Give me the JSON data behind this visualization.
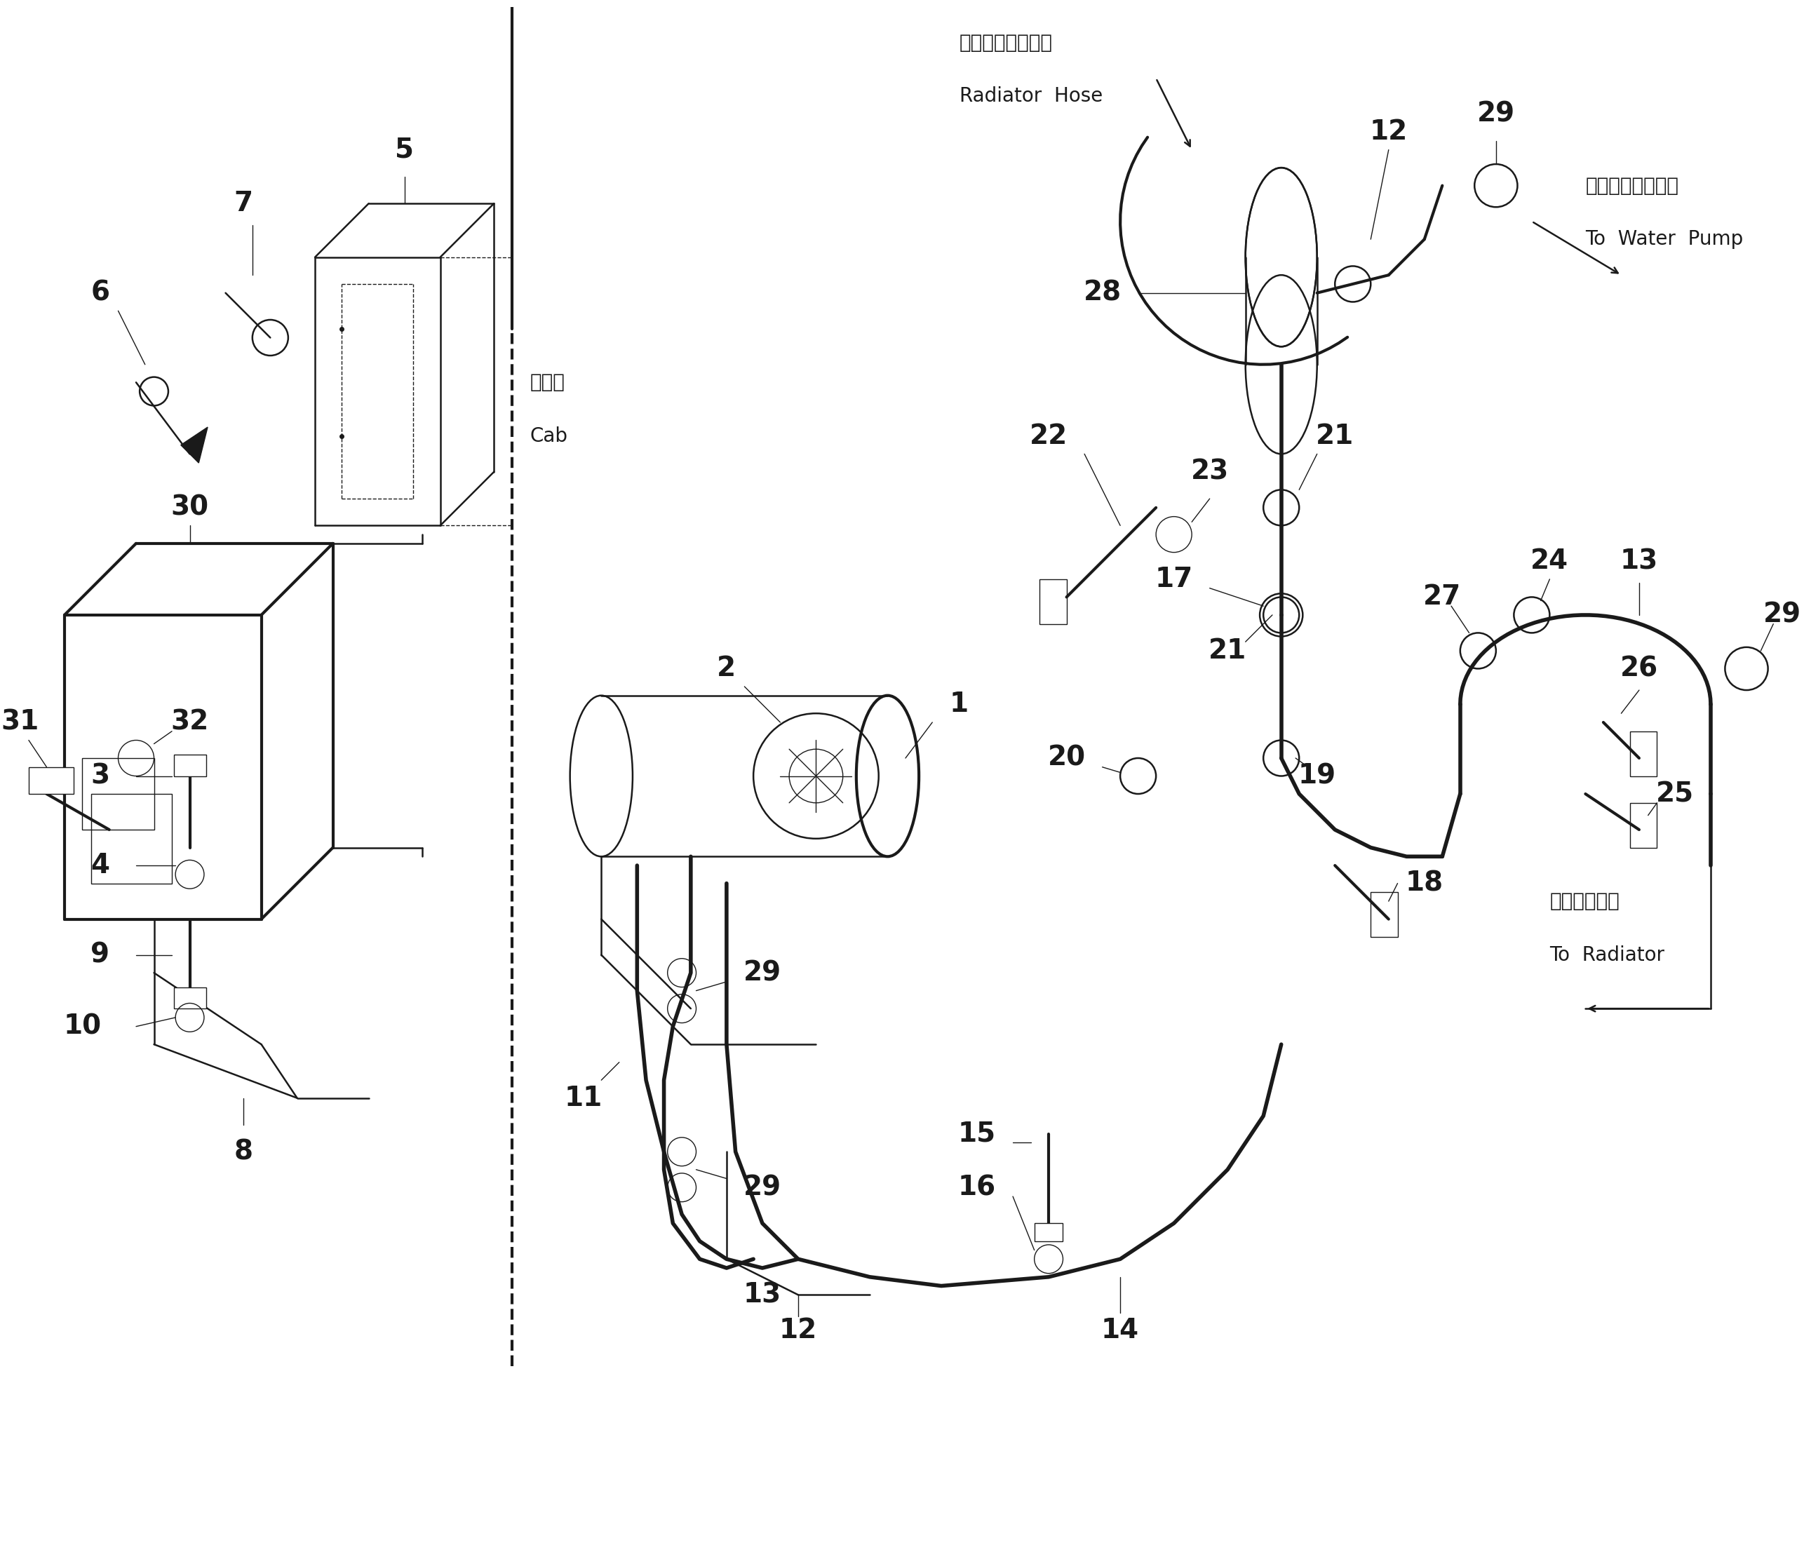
{
  "bg_color": "#ffffff",
  "line_color": "#1a1a1a",
  "figsize": [
    25.72,
    22.13
  ],
  "labels": {
    "radiator_hose_jp": "ラジエータホース",
    "radiator_hose_en": "Radiator  Hose",
    "water_pump_jp": "ウォータポンプへ",
    "water_pump_en": "To  Water  Pump",
    "radiator_jp": "ラジエータへ",
    "radiator_en": "To  Radiator",
    "cab_jp": "キャブ",
    "cab_en": "Cab"
  },
  "font_size_labels": 20,
  "font_size_parts": 28,
  "font_size_annot": 18
}
